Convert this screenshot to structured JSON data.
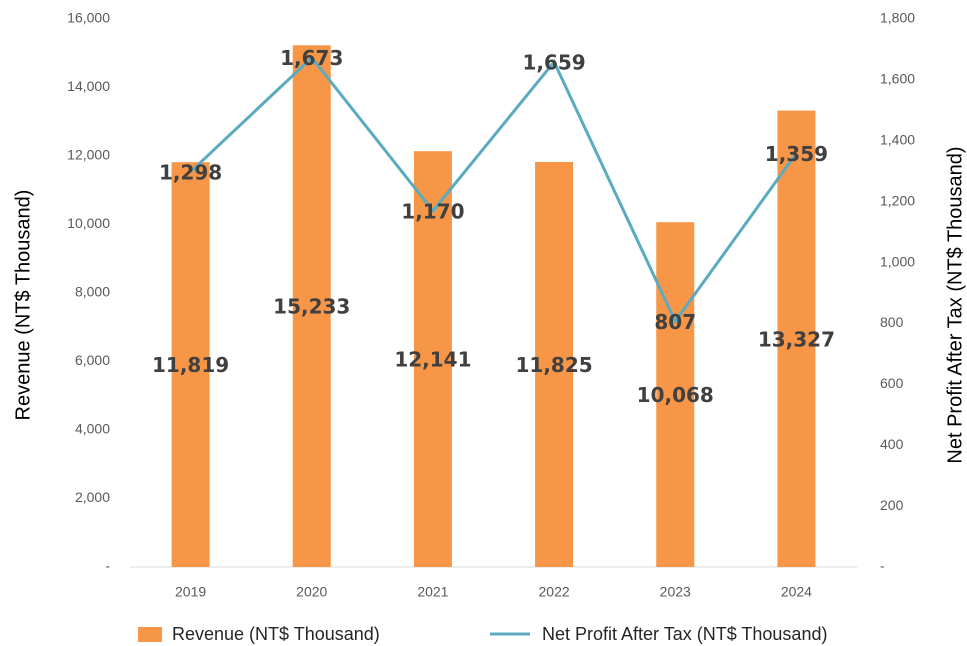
{
  "chart_data": {
    "type": "bar",
    "categories": [
      "2019",
      "2020",
      "2021",
      "2022",
      "2023",
      "2024"
    ],
    "y_label": "Revenue (NT$ Thousand)",
    "y2_label": "Net Profit After Tax (NT$ Thousand)",
    "series": [
      {
        "name": "Revenue (NT$ Thousand)",
        "type": "bar",
        "color": "#f79646",
        "values": [
          11819,
          15233,
          12141,
          11825,
          10068,
          13327
        ],
        "value_labels": [
          "11,819",
          "15,233",
          "12,141",
          "11,825",
          "10,068",
          "13,327"
        ]
      },
      {
        "name": "Net Profit After Tax (NT$ Thousand)",
        "type": "line",
        "axis": "y2",
        "color": "#5aabbf",
        "values": [
          1298,
          1673,
          1170,
          1659,
          807,
          1359
        ],
        "value_labels": [
          "1,298",
          "1,673",
          "1,170",
          "1,659",
          "807",
          "1,359"
        ]
      }
    ],
    "ylim": [
      0,
      16000
    ],
    "yticks": [
      {
        "value": 0,
        "label": "-"
      },
      {
        "value": 2000,
        "label": "2,000"
      },
      {
        "value": 4000,
        "label": "4,000"
      },
      {
        "value": 6000,
        "label": "6,000"
      },
      {
        "value": 8000,
        "label": "8,000"
      },
      {
        "value": 10000,
        "label": "10,000"
      },
      {
        "value": 12000,
        "label": "12,000"
      },
      {
        "value": 14000,
        "label": "14,000"
      },
      {
        "value": 16000,
        "label": "16,000"
      }
    ],
    "y2lim": [
      0,
      1800
    ],
    "y2ticks": [
      {
        "value": 0,
        "label": "-"
      },
      200,
      400,
      600,
      800,
      {
        "value": 1000,
        "label": "1,000"
      },
      {
        "value": 1200,
        "label": "1,200"
      },
      {
        "value": 1400,
        "label": "1,400"
      },
      {
        "value": 1600,
        "label": "1,600"
      },
      {
        "value": 1800,
        "label": "1,800"
      }
    ],
    "grid": false,
    "legend": "bottom"
  }
}
